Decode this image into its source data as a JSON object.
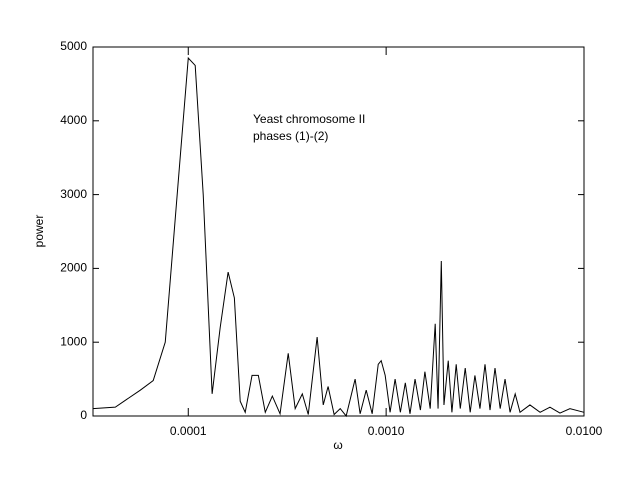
{
  "chart_data": {
    "type": "line",
    "xlabel": "ω",
    "ylabel": "power",
    "annotations": [
      "Yeast chromosome II",
      "phases (1)-(2)"
    ],
    "xlog": true,
    "color": "#000000",
    "xlim": [
      3.3e-05,
      0.01
    ],
    "ylim": [
      0,
      5000
    ],
    "xticks": [
      0.0001,
      {
        "value": 0.001,
        "label": "0.0010"
      },
      {
        "value": 0.01,
        "label": "0.0100"
      }
    ],
    "yticks": [
      0,
      1000,
      2000,
      3000,
      4000,
      5000
    ],
    "series": [
      {
        "name": "power",
        "color": "#000000",
        "x": [
          3.3e-05,
          4.28e-05,
          5.72e-05,
          6.65e-05,
          7.65e-05,
          9.1e-05,
          0.0001,
          0.0001084,
          0.000119,
          0.000132,
          0.000145,
          0.000159,
          0.000171,
          0.000183,
          0.000194,
          0.00021,
          0.000226,
          0.000245,
          0.000266,
          0.000291,
          0.00032,
          0.000347,
          0.000377,
          0.000404,
          0.000448,
          0.000481,
          0.000509,
          0.000546,
          0.000586,
          0.000628,
          0.000697,
          0.000739,
          0.000793,
          0.00085,
          0.000912,
          0.000944,
          0.000989,
          0.001047,
          0.00111,
          0.00118,
          0.00125,
          0.00132,
          0.0014,
          0.00149,
          0.00157,
          0.00167,
          0.00177,
          0.00183,
          0.0019,
          0.00196,
          0.00206,
          0.00215,
          0.00226,
          0.00237,
          0.00251,
          0.00266,
          0.00281,
          0.00298,
          0.00316,
          0.00335,
          0.00355,
          0.00377,
          0.00399,
          0.00423,
          0.00449,
          0.00475,
          0.00533,
          0.006,
          0.00673,
          0.00756,
          0.00849,
          0.01
        ],
        "values": [
          100,
          120,
          350,
          480,
          1000,
          3500,
          4850,
          4750,
          3000,
          300,
          1200,
          1950,
          1600,
          200,
          50,
          550,
          550,
          50,
          270,
          30,
          850,
          100,
          300,
          20,
          1070,
          150,
          400,
          20,
          100,
          0,
          500,
          30,
          350,
          30,
          700,
          750,
          550,
          50,
          500,
          50,
          450,
          30,
          500,
          80,
          600,
          100,
          1250,
          100,
          2100,
          150,
          750,
          50,
          700,
          100,
          650,
          50,
          550,
          100,
          700,
          80,
          650,
          100,
          500,
          50,
          300,
          50,
          150,
          50,
          120,
          40,
          100,
          50
        ]
      }
    ]
  }
}
